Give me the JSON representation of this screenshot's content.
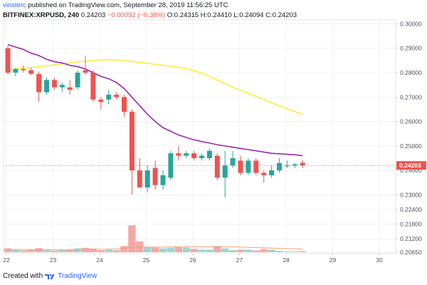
{
  "header": {
    "author": "vinsterc",
    "published_text": "published on TradingView.com, September 28, 2019 11:56:25 UTC",
    "symbol": "BITFINEX:XRPUSD, 240",
    "last": "0.24203",
    "change": "−0.00092 (−0.38%)",
    "ohlc_text": "O:0.24315 H:0.24410 L:0.24094 C:0.24203"
  },
  "footer": {
    "created_with": "Created with",
    "brand": "TradingView",
    "logo_icon": "tradingview-logo-icon"
  },
  "colors": {
    "up": "#26a69a",
    "down": "#ef5350",
    "up_volume": "#9fd4cf",
    "down_volume": "#f5a8a6",
    "ma_fast": "#9c27b0",
    "ma_slow": "#ffeb3b",
    "volume_ma": "#ef9a6a",
    "grid": "#e7e9ee",
    "price_tag": "#ef5350"
  },
  "chart_data": {
    "type": "candlestick",
    "symbol": "BITFINEX:XRPUSD",
    "timeframe": "240",
    "x_tick_labels": [
      "22",
      "23",
      "24",
      "25",
      "26",
      "27",
      "28",
      "29",
      "30"
    ],
    "y_tick_labels": [
      "0.30000",
      "0.29000",
      "0.28000",
      "0.27000",
      "0.26000",
      "0.25000",
      "0.24000",
      "0.23000",
      "0.22400",
      "0.21800",
      "0.21200",
      "0.20650"
    ],
    "ylim": [
      0.2065,
      0.301
    ],
    "grid": true,
    "last_price_label": "0.24203",
    "candles": [
      {
        "o": 0.29,
        "h": 0.291,
        "l": 0.2795,
        "c": 0.28
      },
      {
        "o": 0.28,
        "h": 0.282,
        "l": 0.2785,
        "c": 0.2815
      },
      {
        "o": 0.2815,
        "h": 0.283,
        "l": 0.28,
        "c": 0.281
      },
      {
        "o": 0.281,
        "h": 0.282,
        "l": 0.279,
        "c": 0.2795
      },
      {
        "o": 0.2795,
        "h": 0.2805,
        "l": 0.268,
        "c": 0.272
      },
      {
        "o": 0.272,
        "h": 0.278,
        "l": 0.271,
        "c": 0.277
      },
      {
        "o": 0.277,
        "h": 0.278,
        "l": 0.273,
        "c": 0.274
      },
      {
        "o": 0.274,
        "h": 0.276,
        "l": 0.272,
        "c": 0.275
      },
      {
        "o": 0.274,
        "h": 0.277,
        "l": 0.271,
        "c": 0.273
      },
      {
        "o": 0.274,
        "h": 0.281,
        "l": 0.273,
        "c": 0.28
      },
      {
        "o": 0.281,
        "h": 0.287,
        "l": 0.279,
        "c": 0.28
      },
      {
        "o": 0.28,
        "h": 0.281,
        "l": 0.268,
        "c": 0.269
      },
      {
        "o": 0.269,
        "h": 0.27,
        "l": 0.265,
        "c": 0.268
      },
      {
        "o": 0.269,
        "h": 0.273,
        "l": 0.267,
        "c": 0.271
      },
      {
        "o": 0.271,
        "h": 0.272,
        "l": 0.269,
        "c": 0.27
      },
      {
        "o": 0.27,
        "h": 0.271,
        "l": 0.262,
        "c": 0.264
      },
      {
        "o": 0.264,
        "h": 0.265,
        "l": 0.23,
        "c": 0.24
      },
      {
        "o": 0.24,
        "h": 0.245,
        "l": 0.233,
        "c": 0.233
      },
      {
        "o": 0.233,
        "h": 0.242,
        "l": 0.231,
        "c": 0.24
      },
      {
        "o": 0.241,
        "h": 0.244,
        "l": 0.232,
        "c": 0.234
      },
      {
        "o": 0.234,
        "h": 0.24,
        "l": 0.232,
        "c": 0.238
      },
      {
        "o": 0.237,
        "h": 0.248,
        "l": 0.236,
        "c": 0.247
      },
      {
        "o": 0.247,
        "h": 0.25,
        "l": 0.244,
        "c": 0.246
      },
      {
        "o": 0.246,
        "h": 0.248,
        "l": 0.245,
        "c": 0.247
      },
      {
        "o": 0.247,
        "h": 0.248,
        "l": 0.244,
        "c": 0.245
      },
      {
        "o": 0.245,
        "h": 0.247,
        "l": 0.244,
        "c": 0.246
      },
      {
        "o": 0.245,
        "h": 0.249,
        "l": 0.244,
        "c": 0.248
      },
      {
        "o": 0.246,
        "h": 0.247,
        "l": 0.236,
        "c": 0.237
      },
      {
        "o": 0.237,
        "h": 0.248,
        "l": 0.229,
        "c": 0.242
      },
      {
        "o": 0.242,
        "h": 0.248,
        "l": 0.241,
        "c": 0.245
      },
      {
        "o": 0.244,
        "h": 0.246,
        "l": 0.238,
        "c": 0.239
      },
      {
        "o": 0.239,
        "h": 0.245,
        "l": 0.238,
        "c": 0.244
      },
      {
        "o": 0.244,
        "h": 0.245,
        "l": 0.238,
        "c": 0.239
      },
      {
        "o": 0.239,
        "h": 0.24,
        "l": 0.235,
        "c": 0.238
      },
      {
        "o": 0.238,
        "h": 0.242,
        "l": 0.237,
        "c": 0.24
      },
      {
        "o": 0.24,
        "h": 0.245,
        "l": 0.239,
        "c": 0.243
      },
      {
        "o": 0.242,
        "h": 0.244,
        "l": 0.241,
        "c": 0.242
      },
      {
        "o": 0.242,
        "h": 0.243,
        "l": 0.241,
        "c": 0.2425
      },
      {
        "o": 0.24315,
        "h": 0.2441,
        "l": 0.24094,
        "c": 0.24203
      }
    ],
    "volumes": [
      0.3,
      0.18,
      0.14,
      0.2,
      0.32,
      0.16,
      0.12,
      0.16,
      0.18,
      0.3,
      0.34,
      0.28,
      0.16,
      0.2,
      0.16,
      0.48,
      2.1,
      0.85,
      0.38,
      0.36,
      0.3,
      0.34,
      0.38,
      0.36,
      0.28,
      0.2,
      0.2,
      0.46,
      0.3,
      0.16,
      0.2,
      0.2,
      0.14,
      0.24,
      0.2,
      0.1,
      0.06,
      0.06,
      0.08
    ],
    "ma_fast": [
      0.2915,
      0.2905,
      0.2895,
      0.288,
      0.287,
      0.2855,
      0.2845,
      0.284,
      0.283,
      0.2825,
      0.2815,
      0.28,
      0.2785,
      0.2775,
      0.276,
      0.2735,
      0.27,
      0.2665,
      0.263,
      0.26,
      0.2575,
      0.256,
      0.2545,
      0.2535,
      0.2525,
      0.2518,
      0.2512,
      0.2505,
      0.25,
      0.2495,
      0.249,
      0.2485,
      0.248,
      0.2475,
      0.247,
      0.2468,
      0.2466,
      0.2464,
      0.246
    ],
    "ma_slow": [
      0.281,
      0.2815,
      0.2818,
      0.2821,
      0.2824,
      0.2828,
      0.2832,
      0.2836,
      0.284,
      0.2844,
      0.2847,
      0.285,
      0.2852,
      0.2853,
      0.2852,
      0.285,
      0.2846,
      0.2842,
      0.2838,
      0.2834,
      0.283,
      0.2826,
      0.2822,
      0.2816,
      0.2808,
      0.2798,
      0.2785,
      0.277,
      0.2755,
      0.274,
      0.2728,
      0.2715,
      0.2703,
      0.269,
      0.2677,
      0.2664,
      0.2652,
      0.2641,
      0.263
    ],
    "volume_ma": [
      0.22,
      0.22,
      0.21,
      0.2,
      0.2,
      0.19,
      0.19,
      0.19,
      0.2,
      0.21,
      0.22,
      0.23,
      0.23,
      0.24,
      0.25,
      0.3,
      0.38,
      0.4,
      0.4,
      0.4,
      0.4,
      0.41,
      0.42,
      0.42,
      0.42,
      0.42,
      0.42,
      0.43,
      0.42,
      0.41,
      0.4,
      0.38,
      0.36,
      0.34,
      0.32,
      0.3,
      0.28,
      0.26,
      0.25
    ]
  }
}
